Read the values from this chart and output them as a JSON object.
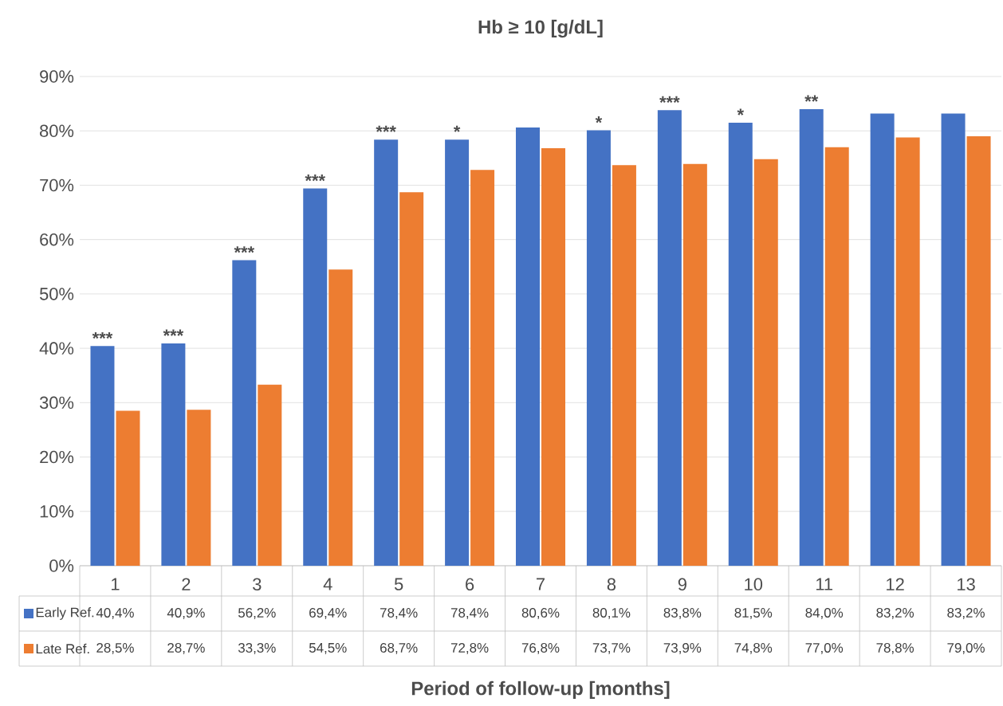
{
  "chart_data": {
    "type": "bar",
    "title": "Hb ≥ 10 [g/dL]",
    "xlabel": "Period of follow-up [months]",
    "categories": [
      "1",
      "2",
      "3",
      "4",
      "5",
      "6",
      "7",
      "8",
      "9",
      "10",
      "11",
      "12",
      "13"
    ],
    "series": [
      {
        "name": "Early Ref.",
        "color": "#4472c4",
        "values": [
          40.4,
          40.9,
          56.2,
          69.4,
          78.4,
          78.4,
          80.6,
          80.1,
          83.8,
          81.5,
          84.0,
          83.2,
          83.2
        ],
        "value_labels": [
          "40,4%",
          "40,9%",
          "56,2%",
          "69,4%",
          "78,4%",
          "78,4%",
          "80,6%",
          "80,1%",
          "83,8%",
          "81,5%",
          "84,0%",
          "83,2%",
          "83,2%"
        ]
      },
      {
        "name": "Late Ref.",
        "color": "#ed7d31",
        "values": [
          28.5,
          28.7,
          33.3,
          54.5,
          68.7,
          72.8,
          76.8,
          73.7,
          73.9,
          74.8,
          77.0,
          78.8,
          79.0
        ],
        "value_labels": [
          "28,5%",
          "28,7%",
          "33,3%",
          "54,5%",
          "68,7%",
          "72,8%",
          "76,8%",
          "73,7%",
          "73,9%",
          "74,8%",
          "77,0%",
          "78,8%",
          "79,0%"
        ]
      }
    ],
    "ylim": [
      0,
      90
    ],
    "yticks": [
      {
        "value": 0,
        "label": "0%"
      },
      {
        "value": 10,
        "label": "10%"
      },
      {
        "value": 20,
        "label": "20%"
      },
      {
        "value": 30,
        "label": "30%"
      },
      {
        "value": 40,
        "label": "40%"
      },
      {
        "value": 50,
        "label": "50%"
      },
      {
        "value": 60,
        "label": "60%"
      },
      {
        "value": 70,
        "label": "70%"
      },
      {
        "value": 80,
        "label": "80%"
      },
      {
        "value": 90,
        "label": "90%"
      }
    ],
    "grid": "y",
    "legend": "bottom",
    "annotations": [
      {
        "text": "***",
        "x": "1",
        "y": 40.4
      },
      {
        "text": "***",
        "x": "2",
        "y": 40.9
      },
      {
        "text": "***",
        "x": "3",
        "y": 56.2
      },
      {
        "text": "***",
        "x": "4",
        "y": 69.4
      },
      {
        "text": "***",
        "x": "5",
        "y": 78.4
      },
      {
        "text": "*",
        "x": "6",
        "y": 78.4
      },
      {
        "text": "*",
        "x": "8",
        "y": 80.1
      },
      {
        "text": "***",
        "x": "9",
        "y": 83.8
      },
      {
        "text": "*",
        "x": "10",
        "y": 81.5
      },
      {
        "text": "**",
        "x": "11",
        "y": 84.0
      }
    ]
  }
}
